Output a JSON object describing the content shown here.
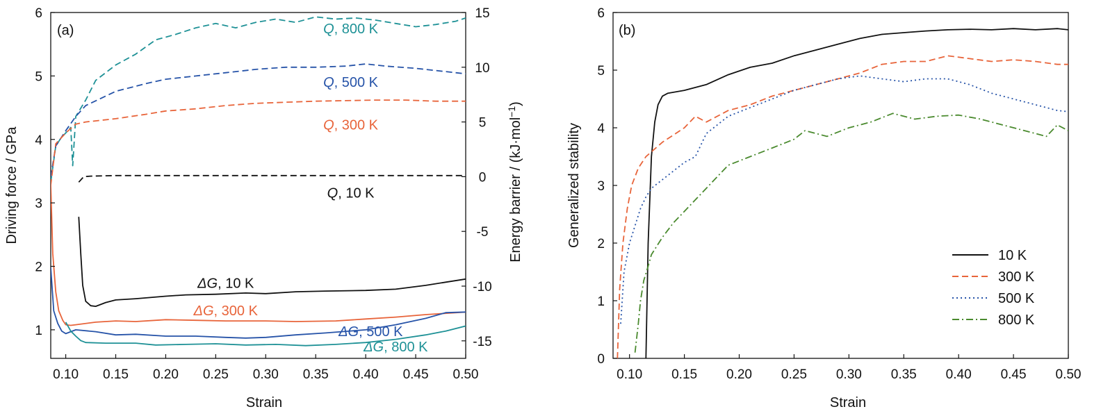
{
  "colors": {
    "k10": "#111111",
    "k300": "#e8643a",
    "k500": "#2653a8",
    "k800": "#1e9196",
    "k800b": "#4a8a2e"
  },
  "chart_data": [
    {
      "type": "line",
      "panel_label": "(a)",
      "xlabel": "Strain",
      "ylabel": "Driving force / GPa",
      "y2label": "Energy barrier / (kJ·mol",
      "y2label_sup": "−1",
      "y2label_end": ")",
      "xlim": [
        0.085,
        0.5
      ],
      "ylim": [
        0.55,
        6
      ],
      "y2lim": [
        -16.6,
        15
      ],
      "xticks": [
        "0.10",
        "0.15",
        "0.20",
        "0.25",
        "0.30",
        "0.35",
        "0.40",
        "0.45",
        "0.50"
      ],
      "yticks": [
        "1",
        "2",
        "3",
        "4",
        "5",
        "6"
      ],
      "y2ticks": [
        "-15",
        "-10",
        "-5",
        "0",
        "5",
        "10",
        "15"
      ],
      "series": [
        {
          "name": "Q, 800 K",
          "axis": "y2",
          "style": "dashed",
          "color": "k800",
          "x": [
            0.085,
            0.09,
            0.095,
            0.1,
            0.105,
            0.107,
            0.11,
            0.12,
            0.13,
            0.15,
            0.17,
            0.19,
            0.21,
            0.23,
            0.25,
            0.27,
            0.29,
            0.31,
            0.33,
            0.35,
            0.37,
            0.39,
            0.41,
            0.43,
            0.45,
            0.47,
            0.49,
            0.5
          ],
          "y": [
            -0.5,
            2.8,
            3.5,
            4.0,
            4.5,
            1.0,
            5.5,
            7.0,
            8.8,
            10.2,
            11.2,
            12.5,
            13.0,
            13.6,
            14.0,
            13.6,
            14.1,
            14.4,
            14.1,
            14.6,
            14.4,
            14.5,
            14.3,
            14.0,
            13.7,
            13.9,
            14.2,
            14.5
          ]
        },
        {
          "name": "Q, 500 K",
          "axis": "y2",
          "style": "dashed",
          "color": "k500",
          "x": [
            0.085,
            0.09,
            0.1,
            0.11,
            0.12,
            0.15,
            0.18,
            0.2,
            0.23,
            0.26,
            0.29,
            0.32,
            0.35,
            0.38,
            0.4,
            0.42,
            0.45,
            0.48,
            0.5
          ],
          "y": [
            0.0,
            2.8,
            4.2,
            5.5,
            6.5,
            7.8,
            8.5,
            8.9,
            9.2,
            9.5,
            9.8,
            10.0,
            10.0,
            10.1,
            10.3,
            10.1,
            9.9,
            9.6,
            9.4
          ]
        },
        {
          "name": "Q, 300 K",
          "axis": "y2",
          "style": "dashed",
          "color": "k300",
          "x": [
            0.085,
            0.09,
            0.1,
            0.11,
            0.12,
            0.15,
            0.18,
            0.2,
            0.23,
            0.26,
            0.29,
            0.32,
            0.35,
            0.38,
            0.41,
            0.44,
            0.47,
            0.5
          ],
          "y": [
            -0.8,
            3.0,
            4.0,
            4.8,
            5.0,
            5.3,
            5.7,
            6.0,
            6.2,
            6.5,
            6.7,
            6.8,
            6.9,
            6.95,
            7.0,
            7.0,
            6.9,
            6.9
          ]
        },
        {
          "name": "Q, 10 K",
          "axis": "y2",
          "style": "dashed",
          "color": "k10",
          "x": [
            0.113,
            0.118,
            0.125,
            0.15,
            0.2,
            0.25,
            0.3,
            0.35,
            0.4,
            0.45,
            0.5
          ],
          "y": [
            -0.5,
            0.0,
            0.05,
            0.1,
            0.1,
            0.1,
            0.1,
            0.1,
            0.1,
            0.1,
            0.1
          ]
        },
        {
          "name": "ΔG, 10 K",
          "axis": "y",
          "style": "solid",
          "color": "k10",
          "x": [
            0.113,
            0.115,
            0.117,
            0.12,
            0.125,
            0.13,
            0.14,
            0.15,
            0.17,
            0.2,
            0.22,
            0.25,
            0.28,
            0.3,
            0.33,
            0.36,
            0.4,
            0.43,
            0.46,
            0.48,
            0.5
          ],
          "y": [
            2.78,
            2.2,
            1.7,
            1.45,
            1.38,
            1.37,
            1.43,
            1.47,
            1.49,
            1.53,
            1.55,
            1.56,
            1.58,
            1.57,
            1.6,
            1.61,
            1.62,
            1.64,
            1.7,
            1.75,
            1.8
          ]
        },
        {
          "name": "ΔG, 300 K",
          "axis": "y",
          "style": "solid",
          "color": "k300",
          "x": [
            0.085,
            0.087,
            0.09,
            0.093,
            0.097,
            0.1,
            0.105,
            0.11,
            0.13,
            0.15,
            0.17,
            0.2,
            0.23,
            0.26,
            0.3,
            0.33,
            0.37,
            0.4,
            0.43,
            0.46,
            0.5
          ],
          "y": [
            3.3,
            2.2,
            1.6,
            1.3,
            1.15,
            1.08,
            1.07,
            1.08,
            1.12,
            1.14,
            1.13,
            1.16,
            1.15,
            1.14,
            1.14,
            1.13,
            1.14,
            1.17,
            1.2,
            1.24,
            1.28
          ]
        },
        {
          "name": "ΔG, 500 K",
          "axis": "y",
          "style": "solid",
          "color": "k500",
          "x": [
            0.085,
            0.088,
            0.092,
            0.096,
            0.1,
            0.105,
            0.11,
            0.13,
            0.15,
            0.17,
            0.2,
            0.23,
            0.26,
            0.28,
            0.3,
            0.33,
            0.36,
            0.4,
            0.43,
            0.46,
            0.48,
            0.5
          ],
          "y": [
            1.98,
            1.3,
            1.1,
            0.98,
            0.94,
            0.97,
            1.0,
            0.97,
            0.92,
            0.93,
            0.9,
            0.9,
            0.88,
            0.87,
            0.88,
            0.92,
            0.95,
            1.0,
            1.08,
            1.18,
            1.27,
            1.28
          ]
        },
        {
          "name": "ΔG, 800 K",
          "axis": "y",
          "style": "solid",
          "color": "k800",
          "x": [
            0.1,
            0.105,
            0.11,
            0.115,
            0.12,
            0.14,
            0.17,
            0.19,
            0.22,
            0.25,
            0.28,
            0.31,
            0.34,
            0.37,
            0.4,
            0.43,
            0.46,
            0.48,
            0.5
          ],
          "y": [
            1.12,
            0.98,
            0.9,
            0.83,
            0.8,
            0.79,
            0.79,
            0.76,
            0.77,
            0.78,
            0.76,
            0.77,
            0.75,
            0.77,
            0.8,
            0.85,
            0.92,
            0.98,
            1.06
          ]
        }
      ],
      "annotations": [
        {
          "pre": "Q",
          "post": ", 800 K",
          "color": "k800",
          "x": 0.385,
          "y2": 13.1
        },
        {
          "pre": "Q",
          "post": ", 500 K",
          "color": "k500",
          "x": 0.385,
          "y2": 8.2
        },
        {
          "pre": "Q",
          "post": ", 300 K",
          "color": "k300",
          "x": 0.385,
          "y2": 4.3
        },
        {
          "pre": "Q",
          "post": ", 10 K",
          "color": "k10",
          "x": 0.385,
          "y2": -1.9
        },
        {
          "pre": "ΔG",
          "post": ", 10 K",
          "color": "k10",
          "x": 0.26,
          "y": 1.66
        },
        {
          "pre": "ΔG",
          "post": ", 300 K",
          "color": "k300",
          "x": 0.26,
          "y": 1.23
        },
        {
          "pre": "ΔG",
          "post": ", 500 K",
          "color": "k500",
          "x": 0.405,
          "y": 0.9
        },
        {
          "pre": "ΔG",
          "post": ", 800 K",
          "color": "k800",
          "x": 0.43,
          "y": 0.66
        }
      ]
    },
    {
      "type": "line",
      "panel_label": "(b)",
      "xlabel": "Strain",
      "ylabel": "Generalized stability",
      "xlim": [
        0.085,
        0.5
      ],
      "ylim": [
        0,
        6
      ],
      "xticks": [
        "0.10",
        "0.15",
        "0.20",
        "0.25",
        "0.30",
        "0.35",
        "0.40",
        "0.45",
        "0.50"
      ],
      "yticks": [
        "0",
        "1",
        "2",
        "3",
        "4",
        "5",
        "6"
      ],
      "legend_position": "lower-right",
      "series": [
        {
          "name": "10 K",
          "style": "solid",
          "color": "k10",
          "x": [
            0.115,
            0.117,
            0.12,
            0.123,
            0.126,
            0.13,
            0.135,
            0.15,
            0.17,
            0.19,
            0.21,
            0.23,
            0.25,
            0.27,
            0.29,
            0.31,
            0.33,
            0.35,
            0.37,
            0.39,
            0.41,
            0.43,
            0.45,
            0.47,
            0.49,
            0.5
          ],
          "y": [
            0.0,
            2.0,
            3.5,
            4.1,
            4.4,
            4.55,
            4.6,
            4.65,
            4.75,
            4.92,
            5.05,
            5.12,
            5.25,
            5.35,
            5.45,
            5.55,
            5.62,
            5.65,
            5.68,
            5.7,
            5.71,
            5.7,
            5.72,
            5.7,
            5.72,
            5.7
          ]
        },
        {
          "name": "300 K",
          "style": "dashed",
          "color": "k300",
          "x": [
            0.089,
            0.091,
            0.094,
            0.098,
            0.102,
            0.108,
            0.115,
            0.13,
            0.15,
            0.16,
            0.17,
            0.19,
            0.21,
            0.23,
            0.25,
            0.27,
            0.29,
            0.31,
            0.33,
            0.35,
            0.37,
            0.39,
            0.41,
            0.43,
            0.45,
            0.47,
            0.49,
            0.5
          ],
          "y": [
            0.0,
            1.2,
            2.0,
            2.6,
            3.0,
            3.3,
            3.5,
            3.75,
            4.0,
            4.2,
            4.1,
            4.3,
            4.4,
            4.55,
            4.65,
            4.75,
            4.85,
            4.95,
            5.1,
            5.15,
            5.15,
            5.25,
            5.2,
            5.15,
            5.18,
            5.15,
            5.1,
            5.1
          ]
        },
        {
          "name": "500 K",
          "style": "dotted",
          "color": "k500",
          "x": [
            0.092,
            0.095,
            0.1,
            0.105,
            0.11,
            0.115,
            0.12,
            0.13,
            0.14,
            0.15,
            0.16,
            0.17,
            0.19,
            0.21,
            0.23,
            0.25,
            0.27,
            0.29,
            0.31,
            0.33,
            0.35,
            0.37,
            0.39,
            0.41,
            0.43,
            0.45,
            0.47,
            0.49,
            0.5
          ],
          "y": [
            0.6,
            1.5,
            2.0,
            2.3,
            2.6,
            2.8,
            2.95,
            3.1,
            3.25,
            3.4,
            3.5,
            3.9,
            4.2,
            4.35,
            4.5,
            4.65,
            4.75,
            4.85,
            4.9,
            4.85,
            4.8,
            4.85,
            4.85,
            4.75,
            4.6,
            4.5,
            4.4,
            4.3,
            4.28
          ]
        },
        {
          "name": "800 K",
          "style": "dashdot",
          "color": "k800b",
          "x": [
            0.105,
            0.108,
            0.11,
            0.113,
            0.117,
            0.12,
            0.13,
            0.14,
            0.15,
            0.17,
            0.19,
            0.21,
            0.23,
            0.25,
            0.26,
            0.28,
            0.3,
            0.32,
            0.34,
            0.36,
            0.38,
            0.4,
            0.42,
            0.44,
            0.46,
            0.48,
            0.49,
            0.5
          ],
          "y": [
            0.1,
            0.6,
            1.0,
            1.35,
            1.6,
            1.8,
            2.1,
            2.35,
            2.55,
            2.95,
            3.35,
            3.5,
            3.65,
            3.8,
            3.95,
            3.85,
            4.0,
            4.1,
            4.25,
            4.15,
            4.2,
            4.22,
            4.15,
            4.05,
            3.95,
            3.85,
            4.05,
            3.95
          ]
        }
      ]
    }
  ]
}
